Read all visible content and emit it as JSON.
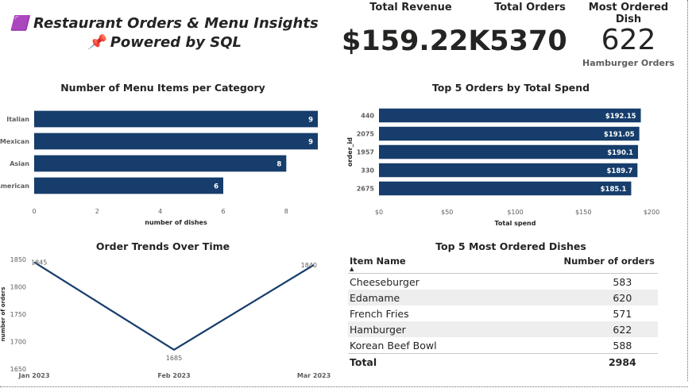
{
  "header": {
    "title_icon": "🟪",
    "title_line1": "Restaurant Orders & Menu Insights",
    "title_pin_icon": "📌",
    "title_line2": "Powered by SQL"
  },
  "kpis": {
    "revenue_label": "Total Revenue",
    "revenue_value": "$159.22K",
    "orders_label": "Total Orders",
    "orders_value": "5370",
    "dish_label": "Most Ordered Dish",
    "dish_value": "622",
    "dish_sub": "Hamburger Orders"
  },
  "chart_data": [
    {
      "type": "bar",
      "orientation": "horizontal",
      "title": "Number of Menu Items per Category",
      "categories": [
        "Italian",
        "Mexican",
        "Asian",
        "American"
      ],
      "values": [
        9,
        9,
        8,
        6
      ],
      "data_labels": [
        "9",
        "9",
        "8",
        "6"
      ],
      "xlabel": "number of dishes",
      "ylabel": "",
      "xlim": [
        0,
        9
      ],
      "xticks": [
        "0",
        "2",
        "4",
        "6",
        "8"
      ],
      "color": "#163d6b",
      "grid": false,
      "legend": "none"
    },
    {
      "type": "bar",
      "orientation": "horizontal",
      "title": "Top 5 Orders by Total Spend",
      "categories": [
        "440",
        "2075",
        "1957",
        "330",
        "2675"
      ],
      "values": [
        192.15,
        191.05,
        190.1,
        189.7,
        185.1
      ],
      "data_labels": [
        "$192.15",
        "$191.05",
        "$190.1",
        "$189.7",
        "$185.1"
      ],
      "xlabel": "Total spend",
      "ylabel": "order_id",
      "xlim": [
        0,
        200
      ],
      "xticks": [
        "$0",
        "$50",
        "$100",
        "$150",
        "$200"
      ],
      "color": "#163d6b",
      "grid": false,
      "legend": "none"
    },
    {
      "type": "line",
      "title": "Order Trends Over Time",
      "x": [
        "Jan 2023",
        "Feb 2023",
        "Mar 2023"
      ],
      "values": [
        1845,
        1685,
        1840
      ],
      "data_labels": [
        "1845",
        "1685",
        "1840"
      ],
      "xlabel": "",
      "ylabel": "number of orders",
      "ylim": [
        1650,
        1850
      ],
      "yticks": [
        "1650",
        "1700",
        "1750",
        "1800",
        "1850"
      ],
      "color": "#163d6b",
      "grid": false,
      "legend": "none"
    },
    {
      "type": "table",
      "title": "Top 5 Most Ordered Dishes",
      "columns": [
        "Item Name",
        "Number of orders"
      ],
      "rows": [
        [
          "Cheeseburger",
          "583"
        ],
        [
          "Edamame",
          "620"
        ],
        [
          "French Fries",
          "571"
        ],
        [
          "Hamburger",
          "622"
        ],
        [
          "Korean Beef Bowl",
          "588"
        ]
      ],
      "total_label": "Total",
      "total_value": "2984",
      "sort_indicator": "▲"
    }
  ]
}
